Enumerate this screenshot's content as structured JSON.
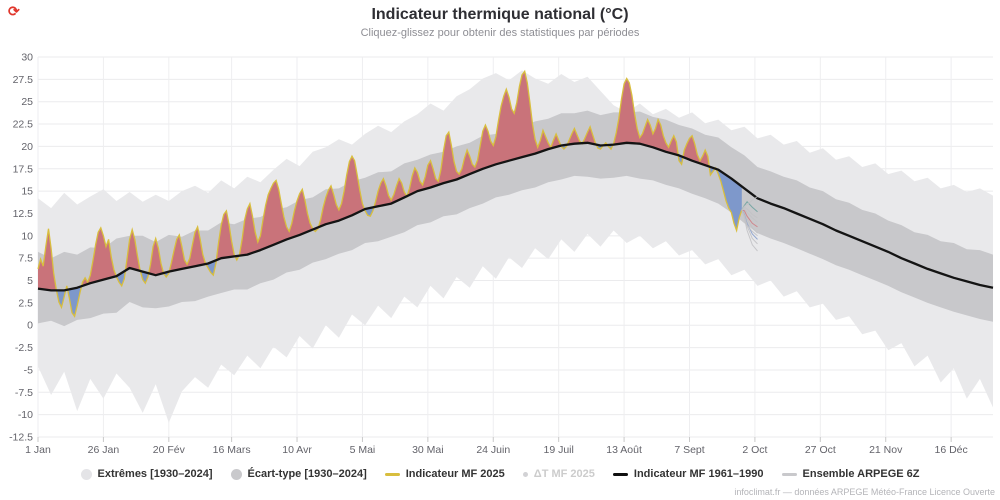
{
  "header": {
    "title": "Indicateur thermique national (°C)",
    "subtitle": "Cliquez-glissez pour obtenir des statistiques par périodes",
    "refresh_icon": {
      "glyph": "⟳",
      "color": "#e0372c"
    }
  },
  "footer": {
    "credit": "infoclimat.fr — données ARPEGE Météo-France Licence Ouverte"
  },
  "legend": {
    "items": [
      {
        "label": "Extrêmes [1930–2024]",
        "marker": "circle",
        "color": "#e4e4e7",
        "disabled": false
      },
      {
        "label": "Écart-type [1930–2024]",
        "marker": "circle",
        "color": "#c9c9cc",
        "disabled": false
      },
      {
        "label": "Indicateur MF 2025",
        "marker": "line",
        "color": "#d8be3e",
        "disabled": false
      },
      {
        "label": "ΔT MF 2025",
        "marker": "dot",
        "color": "#d2d2d5",
        "disabled": true
      },
      {
        "label": "Indicateur MF 1961–1990",
        "marker": "line",
        "color": "#101010",
        "disabled": false
      },
      {
        "label": "Ensemble ARPEGE 6Z",
        "marker": "line",
        "color": "#c9c9cc",
        "disabled": false
      }
    ]
  },
  "chart_data": {
    "type": "area",
    "title": "Indicateur thermique national (°C)",
    "grid": true,
    "x_axis": {
      "unit": "day_of_year",
      "range": [
        1,
        366
      ],
      "ticks": [
        {
          "day": 1,
          "label": "1 Jan"
        },
        {
          "day": 26,
          "label": "26 Jan"
        },
        {
          "day": 51,
          "label": "20 Fév"
        },
        {
          "day": 75,
          "label": "16 Mars"
        },
        {
          "day": 100,
          "label": "10 Avr"
        },
        {
          "day": 125,
          "label": "5 Mai"
        },
        {
          "day": 150,
          "label": "30 Mai"
        },
        {
          "day": 175,
          "label": "24 Juin"
        },
        {
          "day": 200,
          "label": "19 Juil"
        },
        {
          "day": 225,
          "label": "13 Août"
        },
        {
          "day": 250,
          "label": "7 Sept"
        },
        {
          "day": 275,
          "label": "2 Oct"
        },
        {
          "day": 300,
          "label": "27 Oct"
        },
        {
          "day": 325,
          "label": "21 Nov"
        },
        {
          "day": 350,
          "label": "16 Déc"
        }
      ]
    },
    "y_axis": {
      "unit": "°C",
      "range": [
        -12.5,
        30
      ],
      "tick_step": 2.5,
      "ticks": [
        {
          "v": 30,
          "label": "30"
        },
        {
          "v": 27.5,
          "label": "27.5"
        },
        {
          "v": 25,
          "label": "25"
        },
        {
          "v": 22.5,
          "label": "22.5"
        },
        {
          "v": 20,
          "label": "20"
        },
        {
          "v": 17.5,
          "label": "17.5"
        },
        {
          "v": 15,
          "label": "15"
        },
        {
          "v": 12.5,
          "label": "12.5"
        },
        {
          "v": 10,
          "label": "10"
        },
        {
          "v": 7.5,
          "label": "7.5"
        },
        {
          "v": 5,
          "label": "5"
        },
        {
          "v": 2.5,
          "label": "2.5"
        },
        {
          "v": 0,
          "label": "0"
        },
        {
          "v": -2.5,
          "label": "-2.5"
        },
        {
          "v": -5,
          "label": "-5"
        },
        {
          "v": -7.5,
          "label": "-7.5"
        },
        {
          "v": -10,
          "label": "-10"
        },
        {
          "v": -12.5,
          "label": "-12.5"
        }
      ]
    },
    "grid_start_day": 1,
    "grid_day_step": 5,
    "series": {
      "extremes": {
        "name": "Extrêmes [1930–2024]",
        "color": "#e9e9eb",
        "hi": [
          14.2,
          13.1,
          14.8,
          13.5,
          14.4,
          15.2,
          13.9,
          14.9,
          13.8,
          14.6,
          13.9,
          15.0,
          15.6,
          14.8,
          16.2,
          15.3,
          16.6,
          16.0,
          17.4,
          18.6,
          17.8,
          19.4,
          19.9,
          20.8,
          20.2,
          21.4,
          22.3,
          21.6,
          22.8,
          23.6,
          24.8,
          24.0,
          25.6,
          26.4,
          27.6,
          28.2,
          27.4,
          28.5,
          27.6,
          27.0,
          28.1,
          27.2,
          27.8,
          26.2,
          24.6,
          23.8,
          24.8,
          23.6,
          24.2,
          23.2,
          23.8,
          22.6,
          23.0,
          21.8,
          22.2,
          20.9,
          21.3,
          20.2,
          20.6,
          19.3,
          19.8,
          18.5,
          18.9,
          17.7,
          18.1,
          16.9,
          17.3,
          16.1,
          16.5,
          15.3,
          15.7,
          14.9,
          15.3,
          14.5
        ],
        "lo": [
          -4.6,
          -7.8,
          -5.2,
          -9.6,
          -6.0,
          -8.2,
          -5.4,
          -7.0,
          -9.8,
          -6.6,
          -10.9,
          -7.4,
          -5.8,
          -7.0,
          -4.4,
          -5.6,
          -3.4,
          -4.8,
          -2.4,
          -3.6,
          -1.2,
          -2.6,
          0.0,
          -1.4,
          1.2,
          0.0,
          2.2,
          0.8,
          3.2,
          2.0,
          4.4,
          3.0,
          5.4,
          4.2,
          6.6,
          5.2,
          7.6,
          6.4,
          8.6,
          7.4,
          9.6,
          8.2,
          10.2,
          8.8,
          10.6,
          9.2,
          10.0,
          8.6,
          9.4,
          7.8,
          8.4,
          6.8,
          7.4,
          5.6,
          6.2,
          4.4,
          5.0,
          3.2,
          3.8,
          2.0,
          2.4,
          0.6,
          1.0,
          -1.0,
          -0.6,
          -2.8,
          -2.0,
          -4.6,
          -3.4,
          -6.4,
          -4.8,
          -8.2,
          -6.0,
          -9.2
        ]
      },
      "ecart_type": {
        "name": "Écart-type [1930–2024]",
        "color": "#c8c8cb",
        "hi": [
          8.2,
          7.5,
          8.2,
          7.9,
          8.7,
          8.6,
          9.7,
          10.0,
          10.0,
          9.3,
          10.1,
          9.9,
          10.6,
          10.6,
          11.5,
          11.3,
          11.9,
          12.1,
          12.9,
          13.2,
          14.0,
          14.3,
          15.2,
          15.3,
          16.1,
          16.5,
          17.1,
          17.2,
          18.1,
          18.5,
          19.1,
          19.4,
          20.0,
          20.4,
          21.2,
          21.4,
          22.1,
          22.2,
          22.8,
          23.1,
          23.7,
          23.7,
          24.0,
          23.5,
          23.8,
          23.8,
          23.9,
          23.3,
          23.0,
          22.4,
          22.0,
          21.3,
          21.0,
          19.9,
          19.0,
          17.7,
          17.2,
          16.6,
          16.2,
          15.4,
          15.0,
          14.1,
          13.7,
          12.9,
          12.5,
          11.7,
          11.2,
          10.4,
          10.1,
          9.4,
          9.2,
          8.5,
          8.4,
          7.9
        ],
        "lo": [
          0.2,
          0.5,
          -0.1,
          0.6,
          0.8,
          1.3,
          1.4,
          2.6,
          2.0,
          1.9,
          2.1,
          2.6,
          2.7,
          3.2,
          3.6,
          4.0,
          4.0,
          4.7,
          5.1,
          5.9,
          6.2,
          7.0,
          7.4,
          8.0,
          8.4,
          9.2,
          9.4,
          9.9,
          10.4,
          11.2,
          11.5,
          12.2,
          12.4,
          13.1,
          13.6,
          14.3,
          14.6,
          15.1,
          15.4,
          16.0,
          16.3,
          16.7,
          16.6,
          16.4,
          16.5,
          16.7,
          16.4,
          16.2,
          15.7,
          15.3,
          14.7,
          14.2,
          13.6,
          12.6,
          11.4,
          10.3,
          9.7,
          9.2,
          8.6,
          8.0,
          7.4,
          6.7,
          6.2,
          5.6,
          5.0,
          4.4,
          3.7,
          3.1,
          2.5,
          2.0,
          1.5,
          1.1,
          0.7,
          0.4
        ]
      },
      "normal_1961_1990": {
        "name": "Indicateur MF 1961–1990",
        "color": "#141414",
        "values": [
          4.1,
          3.9,
          3.9,
          4.2,
          4.7,
          5.1,
          5.5,
          6.4,
          6.0,
          5.6,
          6.0,
          6.3,
          6.6,
          6.9,
          7.5,
          7.7,
          7.9,
          8.4,
          9.0,
          9.6,
          10.1,
          10.7,
          11.3,
          11.7,
          12.3,
          13.0,
          13.3,
          13.6,
          14.3,
          15.0,
          15.4,
          15.9,
          16.3,
          16.9,
          17.5,
          18.0,
          18.4,
          18.8,
          19.2,
          19.7,
          20.1,
          20.3,
          20.4,
          20.1,
          20.2,
          20.4,
          20.3,
          19.9,
          19.4,
          19.0,
          18.4,
          17.9,
          17.4,
          16.4,
          15.3,
          14.2,
          13.6,
          13.1,
          12.5,
          11.9,
          11.3,
          10.6,
          10.0,
          9.4,
          8.8,
          8.2,
          7.5,
          6.9,
          6.3,
          5.8,
          5.3,
          4.9,
          4.5,
          4.2
        ]
      },
      "mf2025": {
        "name": "Indicateur MF 2025",
        "line_color": "#d8be3e",
        "warm_fill": "#c9737a",
        "cold_fill": "#7e98cb",
        "start_day": 1,
        "values": [
          6.3,
          7.4,
          6.6,
          8.8,
          10.8,
          8.6,
          5.8,
          4.0,
          2.6,
          2.0,
          3.2,
          4.4,
          3.0,
          1.4,
          1.0,
          2.2,
          3.6,
          4.8,
          5.3,
          4.8,
          5.6,
          7.2,
          9.0,
          10.4,
          10.9,
          10.0,
          8.8,
          9.6,
          7.6,
          6.2,
          5.4,
          4.8,
          4.4,
          5.2,
          7.4,
          9.6,
          10.7,
          9.6,
          7.8,
          6.2,
          5.1,
          4.7,
          5.4,
          6.8,
          8.8,
          9.7,
          8.6,
          6.9,
          5.8,
          5.4,
          5.8,
          7.0,
          8.4,
          9.6,
          10.1,
          8.8,
          7.3,
          6.8,
          7.5,
          9.0,
          10.4,
          11.0,
          9.6,
          7.9,
          6.9,
          6.4,
          5.9,
          5.6,
          6.9,
          9.2,
          11.2,
          12.4,
          12.8,
          11.3,
          9.4,
          7.9,
          7.3,
          7.9,
          9.6,
          11.8,
          13.0,
          13.6,
          12.2,
          10.4,
          9.3,
          10.0,
          11.8,
          13.4,
          14.6,
          15.3,
          15.9,
          16.2,
          15.2,
          13.6,
          12.1,
          11.0,
          10.5,
          11.4,
          12.8,
          13.9,
          14.7,
          15.2,
          14.0,
          12.5,
          11.4,
          10.8,
          10.5,
          10.8,
          11.8,
          13.2,
          14.3,
          15.1,
          15.6,
          14.6,
          13.5,
          12.9,
          13.6,
          15.0,
          16.8,
          18.3,
          18.9,
          18.4,
          16.8,
          15.1,
          13.6,
          12.8,
          12.3,
          12.2,
          12.8,
          13.8,
          15.0,
          15.9,
          16.4,
          15.6,
          14.5,
          14.0,
          14.6,
          15.6,
          16.4,
          15.9,
          14.9,
          14.4,
          15.3,
          16.7,
          17.6,
          17.1,
          16.1,
          15.7,
          16.6,
          17.9,
          18.4,
          17.5,
          16.4,
          16.1,
          17.4,
          19.5,
          21.2,
          21.6,
          20.1,
          18.3,
          17.2,
          16.9,
          17.5,
          18.7,
          19.6,
          18.9,
          18.0,
          17.7,
          18.5,
          20.1,
          21.7,
          22.4,
          21.7,
          20.6,
          20.1,
          21.1,
          22.9,
          24.5,
          25.6,
          26.4,
          25.5,
          24.2,
          23.7,
          24.9,
          26.7,
          28.0,
          28.4,
          27.1,
          24.9,
          22.5,
          20.8,
          19.9,
          20.7,
          21.8,
          21.1,
          20.4,
          19.9,
          20.7,
          21.4,
          20.7,
          20.0,
          19.7,
          20.0,
          20.7,
          21.4,
          22.0,
          21.3,
          20.6,
          20.3,
          20.9,
          21.6,
          22.2,
          21.3,
          20.4,
          19.8,
          19.7,
          20.1,
          20.4,
          20.0,
          19.7,
          20.3,
          21.5,
          23.1,
          25.3,
          27.0,
          27.6,
          27.1,
          25.7,
          23.7,
          22.0,
          21.0,
          21.4,
          22.2,
          23.0,
          22.4,
          21.4,
          22.0,
          23.0,
          22.4,
          21.2,
          20.4,
          19.9,
          20.6,
          21.2,
          20.5,
          18.4,
          18.0,
          19.6,
          20.3,
          20.9,
          21.2,
          20.3,
          19.1,
          18.4,
          18.9,
          19.6,
          18.9,
          16.8,
          17.2,
          17.6,
          16.9,
          16.1,
          15.0,
          13.9,
          13.1,
          12.6,
          11.4,
          10.6,
          12.0,
          12.9
        ]
      },
      "ensemble": {
        "name": "Ensemble ARPEGE 6Z",
        "default_color": "#c2c2c5",
        "members": [
          {
            "color": "#c2c2c5",
            "points": [
              [
                270,
                12.9
              ],
              [
                271,
                12.2
              ],
              [
                272,
                11.1
              ],
              [
                274,
                9.7
              ],
              [
                276,
                9.1
              ]
            ]
          },
          {
            "color": "#c2c2c5",
            "points": [
              [
                270,
                12.9
              ],
              [
                271,
                12.6
              ],
              [
                272,
                11.9
              ],
              [
                274,
                10.9
              ],
              [
                276,
                10.3
              ]
            ]
          },
          {
            "color": "#c2c2c5",
            "points": [
              [
                270,
                12.9
              ],
              [
                271,
                13.2
              ],
              [
                272,
                13.0
              ],
              [
                274,
                12.4
              ],
              [
                276,
                12.0
              ]
            ]
          },
          {
            "color": "#c2c2c5",
            "points": [
              [
                270,
                12.9
              ],
              [
                271,
                12.0
              ],
              [
                272,
                10.6
              ],
              [
                274,
                9.0
              ],
              [
                276,
                8.3
              ]
            ]
          },
          {
            "color": "#cf8086",
            "points": [
              [
                270,
                12.9
              ],
              [
                271,
                12.8
              ],
              [
                272,
                12.2
              ],
              [
                274,
                11.4
              ],
              [
                276,
                11.0
              ]
            ]
          },
          {
            "color": "#6fa3a0",
            "points": [
              [
                270,
                12.9
              ],
              [
                271,
                13.4
              ],
              [
                272,
                13.8
              ],
              [
                274,
                13.2
              ],
              [
                276,
                12.7
              ]
            ]
          },
          {
            "color": "#8aa0cc",
            "points": [
              [
                270,
                12.9
              ],
              [
                271,
                12.4
              ],
              [
                272,
                11.4
              ],
              [
                274,
                10.2
              ],
              [
                276,
                9.6
              ]
            ]
          },
          {
            "color": "#c2c2c5",
            "points": [
              [
                270,
                12.9
              ],
              [
                271,
                13.0
              ],
              [
                272,
                12.6
              ],
              [
                274,
                12.0
              ],
              [
                276,
                11.5
              ]
            ]
          },
          {
            "color": "#c2c2c5",
            "points": [
              [
                270,
                12.9
              ],
              [
                271,
                12.3
              ],
              [
                272,
                11.2
              ],
              [
                274,
                10.5
              ],
              [
                276,
                10.0
              ]
            ]
          },
          {
            "color": "#c2c2c5",
            "points": [
              [
                270,
                12.9
              ],
              [
                271,
                13.3
              ],
              [
                272,
                13.5
              ],
              [
                274,
                14.0
              ],
              [
                276,
                14.4
              ]
            ]
          }
        ]
      }
    },
    "colors": {
      "h_grid": "#ebebed",
      "v_grid": "#eeeef0",
      "tick": "#c9c9c9",
      "axis_text": "#63636a"
    }
  }
}
